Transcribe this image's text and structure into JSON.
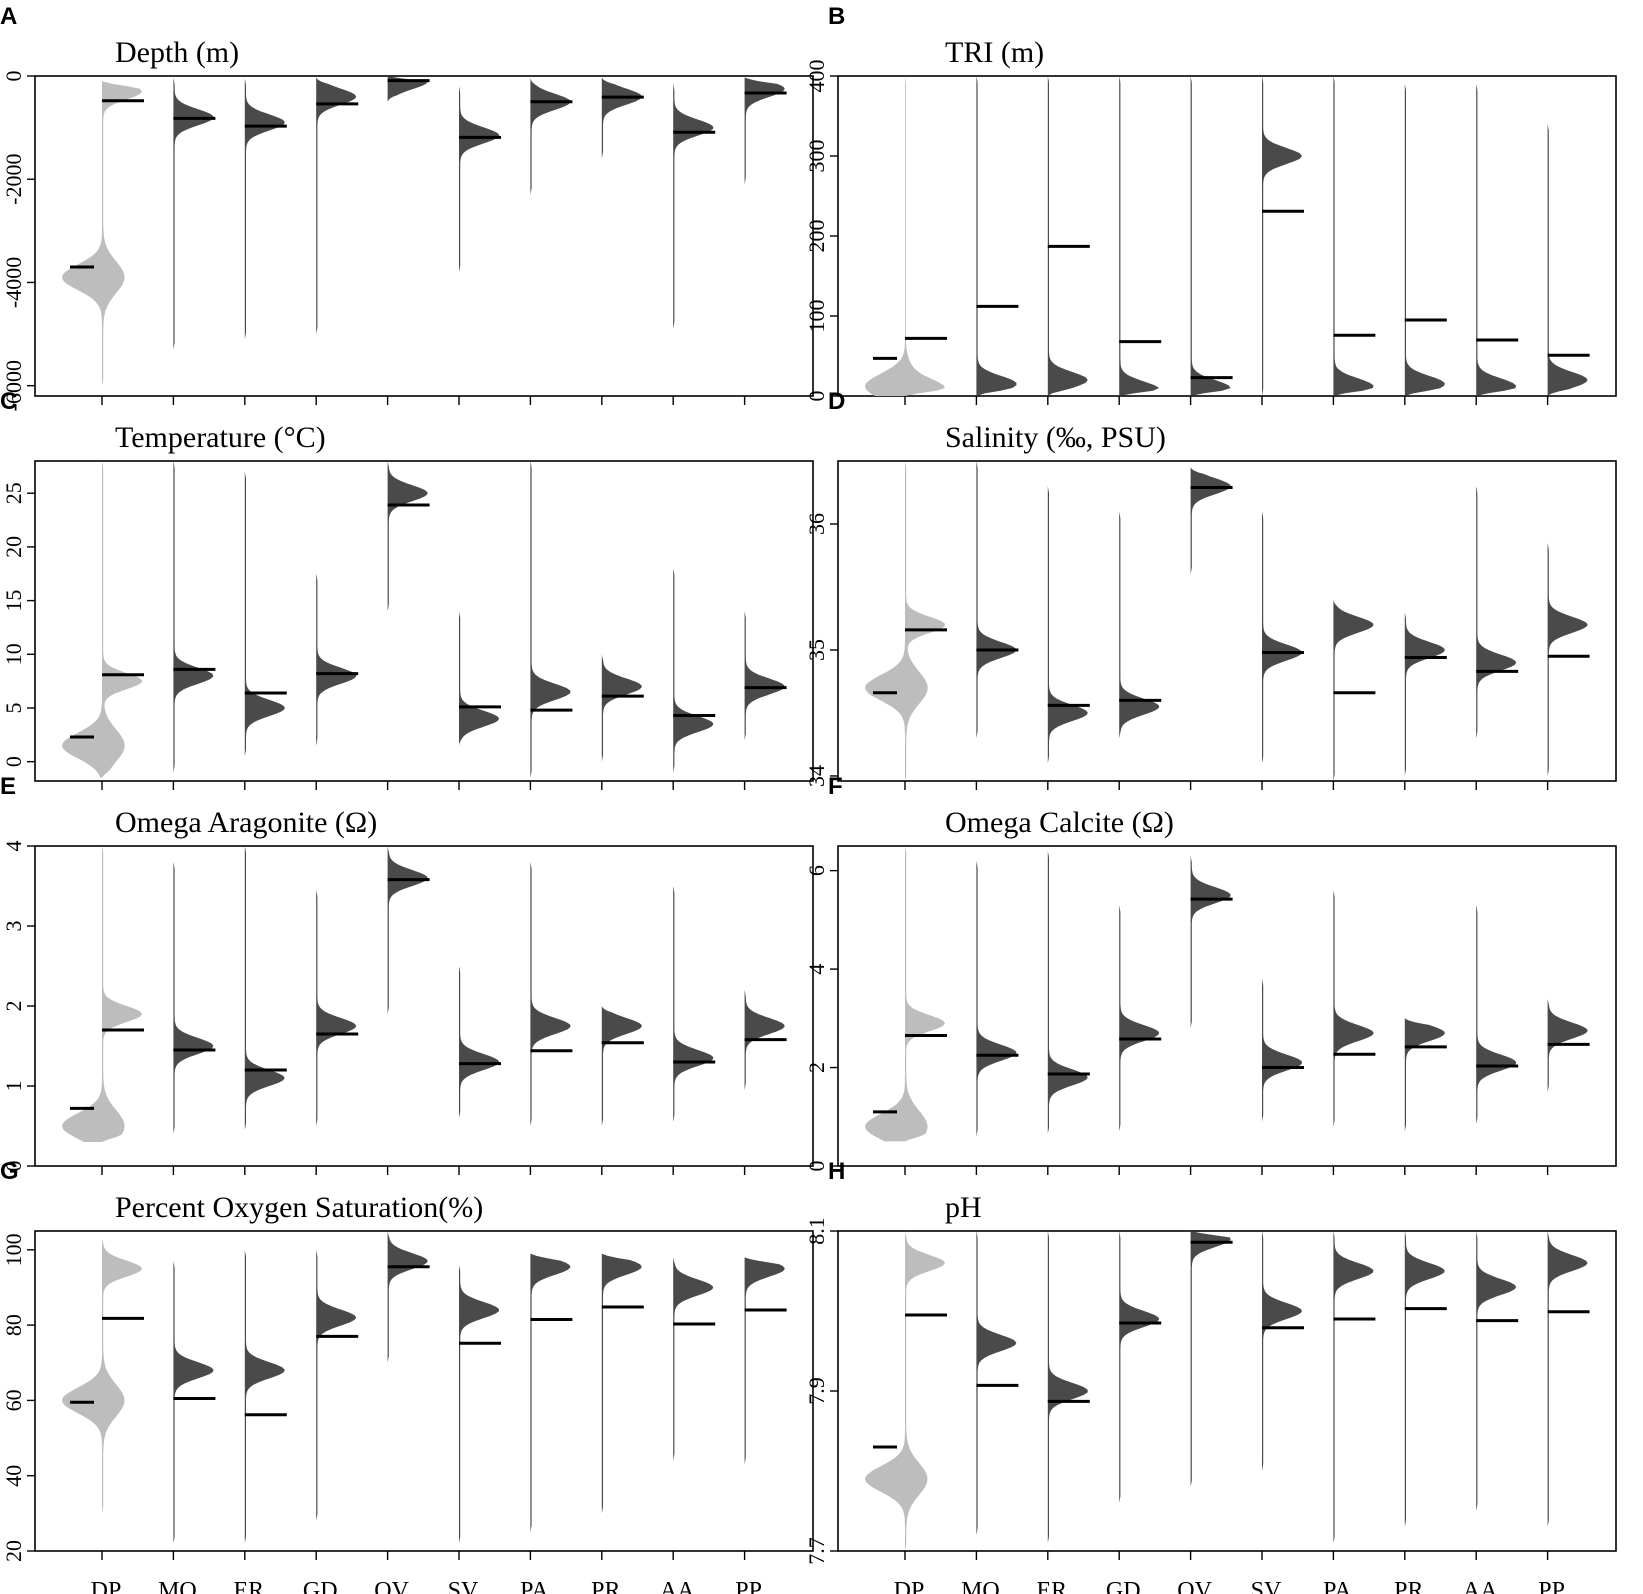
{
  "categories": [
    "DP",
    "MO",
    "ER",
    "GD",
    "OV",
    "SV",
    "PA",
    "PR",
    "AA",
    "PP"
  ],
  "colors": {
    "light": "#bdbdbd",
    "dark": "#4a4a4a",
    "median": "#000000"
  },
  "chart_data": [
    {
      "id": "A",
      "letter": "A",
      "type": "violin",
      "title": "Depth (m)",
      "ylim": [
        -6200,
        0
      ],
      "yticks": [
        0,
        -2000,
        -4000,
        -6000
      ],
      "ytick_labels": [
        "0",
        "-2000",
        "-4000",
        "-6000"
      ],
      "shade": [
        "light",
        "dark",
        "dark",
        "dark",
        "dark",
        "dark",
        "dark",
        "dark",
        "dark",
        "dark"
      ],
      "medians": [
        [
          -3700,
          -480
        ],
        [
          -820
        ],
        [
          -970
        ],
        [
          -540
        ],
        [
          -90
        ],
        [
          -1190
        ],
        [
          -500
        ],
        [
          -410
        ],
        [
          -1090
        ],
        [
          -330
        ]
      ],
      "ranges": [
        [
          -6000,
          -100
        ],
        [
          -5300,
          -30
        ],
        [
          -5100,
          -50
        ],
        [
          -5000,
          -30
        ],
        [
          -500,
          0
        ],
        [
          -3800,
          -200
        ],
        [
          -2300,
          -40
        ],
        [
          -1600,
          -30
        ],
        [
          -4900,
          -150
        ],
        [
          -2100,
          -30
        ]
      ],
      "modes": [
        [
          -3900,
          -300
        ],
        [
          -800
        ],
        [
          -900
        ],
        [
          -400
        ],
        [
          -100
        ],
        [
          -1150
        ],
        [
          -500
        ],
        [
          -400
        ],
        [
          -1000
        ],
        [
          -250
        ]
      ]
    },
    {
      "id": "B",
      "letter": "B",
      "type": "violin",
      "title": "TRI (m)",
      "ylim": [
        0,
        400
      ],
      "yticks": [
        0,
        100,
        200,
        300,
        400
      ],
      "ytick_labels": [
        "0",
        "100",
        "200",
        "300",
        "400"
      ],
      "shade": [
        "light",
        "dark",
        "dark",
        "dark",
        "dark",
        "dark",
        "dark",
        "dark",
        "dark",
        "dark"
      ],
      "medians": [
        [
          47,
          72
        ],
        [
          112
        ],
        [
          187
        ],
        [
          68
        ],
        [
          23
        ],
        [
          231
        ],
        [
          76
        ],
        [
          95
        ],
        [
          70
        ],
        [
          51
        ]
      ],
      "ranges": [
        [
          0,
          400
        ],
        [
          0,
          400
        ],
        [
          0,
          400
        ],
        [
          0,
          400
        ],
        [
          0,
          400
        ],
        [
          0,
          400
        ],
        [
          0,
          400
        ],
        [
          0,
          390
        ],
        [
          0,
          390
        ],
        [
          0,
          340
        ]
      ],
      "modes": [
        [
          12,
          10
        ],
        [
          15
        ],
        [
          20
        ],
        [
          8
        ],
        [
          10
        ],
        [
          300
        ],
        [
          12
        ],
        [
          15
        ],
        [
          12
        ],
        [
          20
        ]
      ]
    },
    {
      "id": "C",
      "letter": "C",
      "type": "violin",
      "title": "Temperature (°C)",
      "ylim": [
        -1.8,
        28
      ],
      "yticks": [
        0,
        5,
        10,
        15,
        20,
        25
      ],
      "ytick_labels": [
        "0",
        "5",
        "10",
        "15",
        "20",
        "25"
      ],
      "shade": [
        "light",
        "dark",
        "dark",
        "dark",
        "dark",
        "dark",
        "dark",
        "dark",
        "dark",
        "dark"
      ],
      "medians": [
        [
          2.3,
          8.1
        ],
        [
          8.6
        ],
        [
          6.4
        ],
        [
          8.2
        ],
        [
          23.9
        ],
        [
          5.1
        ],
        [
          4.8
        ],
        [
          6.1
        ],
        [
          4.3
        ],
        [
          6.9
        ]
      ],
      "ranges": [
        [
          -1.5,
          28
        ],
        [
          -1,
          28
        ],
        [
          0.5,
          27
        ],
        [
          1.5,
          17.5
        ],
        [
          14,
          28
        ],
        [
          1.5,
          14
        ],
        [
          -1.5,
          28
        ],
        [
          0,
          10
        ],
        [
          -1,
          18
        ],
        [
          2,
          14
        ]
      ],
      "modes": [
        [
          1.5,
          7.5
        ],
        [
          8
        ],
        [
          5
        ],
        [
          8
        ],
        [
          25
        ],
        [
          4
        ],
        [
          6.5
        ],
        [
          7
        ],
        [
          3.5
        ],
        [
          7
        ]
      ]
    },
    {
      "id": "D",
      "letter": "D",
      "type": "violin",
      "title": "Salinity (‰, PSU)",
      "ylim": [
        33.96,
        36.5
      ],
      "yticks": [
        34,
        35,
        36
      ],
      "ytick_labels": [
        "34",
        "35",
        "36"
      ],
      "shade": [
        "light",
        "dark",
        "dark",
        "dark",
        "dark",
        "dark",
        "dark",
        "dark",
        "dark",
        "dark"
      ],
      "medians": [
        [
          34.66,
          35.16
        ],
        [
          35.0
        ],
        [
          34.56
        ],
        [
          34.6
        ],
        [
          36.29
        ],
        [
          34.98
        ],
        [
          34.66
        ],
        [
          34.94
        ],
        [
          34.83
        ],
        [
          34.95
        ]
      ],
      "ranges": [
        [
          33.96,
          36.5
        ],
        [
          34.3,
          36.5
        ],
        [
          34.1,
          36.3
        ],
        [
          34.3,
          36.1
        ],
        [
          35.6,
          36.45
        ],
        [
          34.1,
          36.1
        ],
        [
          33.96,
          35.4
        ],
        [
          34.0,
          35.3
        ],
        [
          34.3,
          36.3
        ],
        [
          34.0,
          35.85
        ]
      ],
      "modes": [
        [
          34.7,
          35.2
        ],
        [
          35.0
        ],
        [
          34.5
        ],
        [
          34.55
        ],
        [
          36.3
        ],
        [
          34.98
        ],
        [
          35.2
        ],
        [
          35.0
        ],
        [
          34.9
        ],
        [
          35.2
        ]
      ]
    },
    {
      "id": "E",
      "letter": "E",
      "type": "violin",
      "title": "Omega Aragonite (Ω)",
      "ylim": [
        0,
        4.0
      ],
      "yticks": [
        0,
        1,
        2,
        3,
        4
      ],
      "ytick_labels": [
        "0",
        "1",
        "2",
        "3",
        "4"
      ],
      "shade": [
        "light",
        "dark",
        "dark",
        "dark",
        "dark",
        "dark",
        "dark",
        "dark",
        "dark",
        "dark"
      ],
      "medians": [
        [
          0.72,
          1.7
        ],
        [
          1.45
        ],
        [
          1.2
        ],
        [
          1.65
        ],
        [
          3.58
        ],
        [
          1.28
        ],
        [
          1.44
        ],
        [
          1.54
        ],
        [
          1.3
        ],
        [
          1.58
        ]
      ],
      "ranges": [
        [
          0.3,
          4.0
        ],
        [
          0.4,
          3.8
        ],
        [
          0.45,
          4.0
        ],
        [
          0.5,
          3.45
        ],
        [
          1.9,
          4.0
        ],
        [
          0.6,
          2.5
        ],
        [
          0.5,
          3.8
        ],
        [
          0.5,
          2.0
        ],
        [
          0.55,
          3.5
        ],
        [
          0.95,
          2.2
        ]
      ],
      "modes": [
        [
          0.5,
          1.9
        ],
        [
          1.5
        ],
        [
          1.1
        ],
        [
          1.75
        ],
        [
          3.6
        ],
        [
          1.3
        ],
        [
          1.75
        ],
        [
          1.75
        ],
        [
          1.35
        ],
        [
          1.75
        ]
      ]
    },
    {
      "id": "F",
      "letter": "F",
      "type": "violin",
      "title": "Omega Calcite (Ω)",
      "ylim": [
        0,
        6.5
      ],
      "yticks": [
        0,
        2,
        4,
        6
      ],
      "ytick_labels": [
        "0",
        "2",
        "4",
        "6"
      ],
      "shade": [
        "light",
        "dark",
        "dark",
        "dark",
        "dark",
        "dark",
        "dark",
        "dark",
        "dark",
        "dark"
      ],
      "medians": [
        [
          1.1,
          2.65
        ],
        [
          2.25
        ],
        [
          1.87
        ],
        [
          2.58
        ],
        [
          5.42
        ],
        [
          2.0
        ],
        [
          2.27
        ],
        [
          2.42
        ],
        [
          2.03
        ],
        [
          2.47
        ]
      ],
      "ranges": [
        [
          0.5,
          6.5
        ],
        [
          0.6,
          6.2
        ],
        [
          0.65,
          6.4
        ],
        [
          0.7,
          5.3
        ],
        [
          2.8,
          6.3
        ],
        [
          0.9,
          3.8
        ],
        [
          0.8,
          5.6
        ],
        [
          0.7,
          3.0
        ],
        [
          0.85,
          5.3
        ],
        [
          1.5,
          3.4
        ]
      ],
      "modes": [
        [
          0.8,
          2.9
        ],
        [
          2.3
        ],
        [
          1.8
        ],
        [
          2.7
        ],
        [
          5.5
        ],
        [
          2.1
        ],
        [
          2.7
        ],
        [
          2.7
        ],
        [
          2.1
        ],
        [
          2.75
        ]
      ]
    },
    {
      "id": "G",
      "letter": "G",
      "type": "violin",
      "title": "Percent Oxygen Saturation(%)",
      "ylim": [
        20,
        105
      ],
      "yticks": [
        20,
        40,
        60,
        80,
        100
      ],
      "ytick_labels": [
        "20",
        "40",
        "60",
        "80",
        "100"
      ],
      "shade": [
        "light",
        "dark",
        "dark",
        "dark",
        "dark",
        "dark",
        "dark",
        "dark",
        "dark",
        "dark"
      ],
      "medians": [
        [
          59.5,
          81.8
        ],
        [
          60.5
        ],
        [
          56.2
        ],
        [
          77
        ],
        [
          95.5
        ],
        [
          75.2
        ],
        [
          81.5
        ],
        [
          84.8
        ],
        [
          80.3
        ],
        [
          84
        ]
      ],
      "ranges": [
        [
          30,
          103
        ],
        [
          22,
          97
        ],
        [
          22,
          100
        ],
        [
          28,
          100
        ],
        [
          70,
          105
        ],
        [
          22,
          96
        ],
        [
          25,
          99
        ],
        [
          30,
          99
        ],
        [
          44,
          98
        ],
        [
          43,
          98
        ]
      ],
      "modes": [
        [
          60,
          95
        ],
        [
          68
        ],
        [
          68
        ],
        [
          82
        ],
        [
          97
        ],
        [
          84
        ],
        [
          95.5
        ],
        [
          95.5
        ],
        [
          90
        ],
        [
          95
        ]
      ]
    },
    {
      "id": "H",
      "letter": "H",
      "type": "violin",
      "title": "pH",
      "ylim": [
        7.7,
        8.1
      ],
      "yticks": [
        7.7,
        7.9,
        8.1
      ],
      "ytick_labels": [
        "7.7",
        "7.9",
        "8.1"
      ],
      "shade": [
        "light",
        "dark",
        "dark",
        "dark",
        "dark",
        "dark",
        "dark",
        "dark",
        "dark",
        "dark"
      ],
      "medians": [
        [
          7.83,
          7.995
        ],
        [
          7.907
        ],
        [
          7.887
        ],
        [
          7.985
        ],
        [
          8.086
        ],
        [
          7.979
        ],
        [
          7.99
        ],
        [
          8.003
        ],
        [
          7.988
        ],
        [
          7.999
        ]
      ],
      "ranges": [
        [
          7.7,
          8.1
        ],
        [
          7.72,
          8.1
        ],
        [
          7.71,
          8.1
        ],
        [
          7.76,
          8.1
        ],
        [
          7.78,
          8.1
        ],
        [
          7.8,
          8.1
        ],
        [
          7.71,
          8.1
        ],
        [
          7.73,
          8.1
        ],
        [
          7.75,
          8.1
        ],
        [
          7.73,
          8.1
        ]
      ],
      "modes": [
        [
          7.79,
          8.06
        ],
        [
          7.96
        ],
        [
          7.9
        ],
        [
          7.99
        ],
        [
          8.09
        ],
        [
          8.0
        ],
        [
          8.05
        ],
        [
          8.05
        ],
        [
          8.03
        ],
        [
          8.06
        ]
      ]
    }
  ]
}
